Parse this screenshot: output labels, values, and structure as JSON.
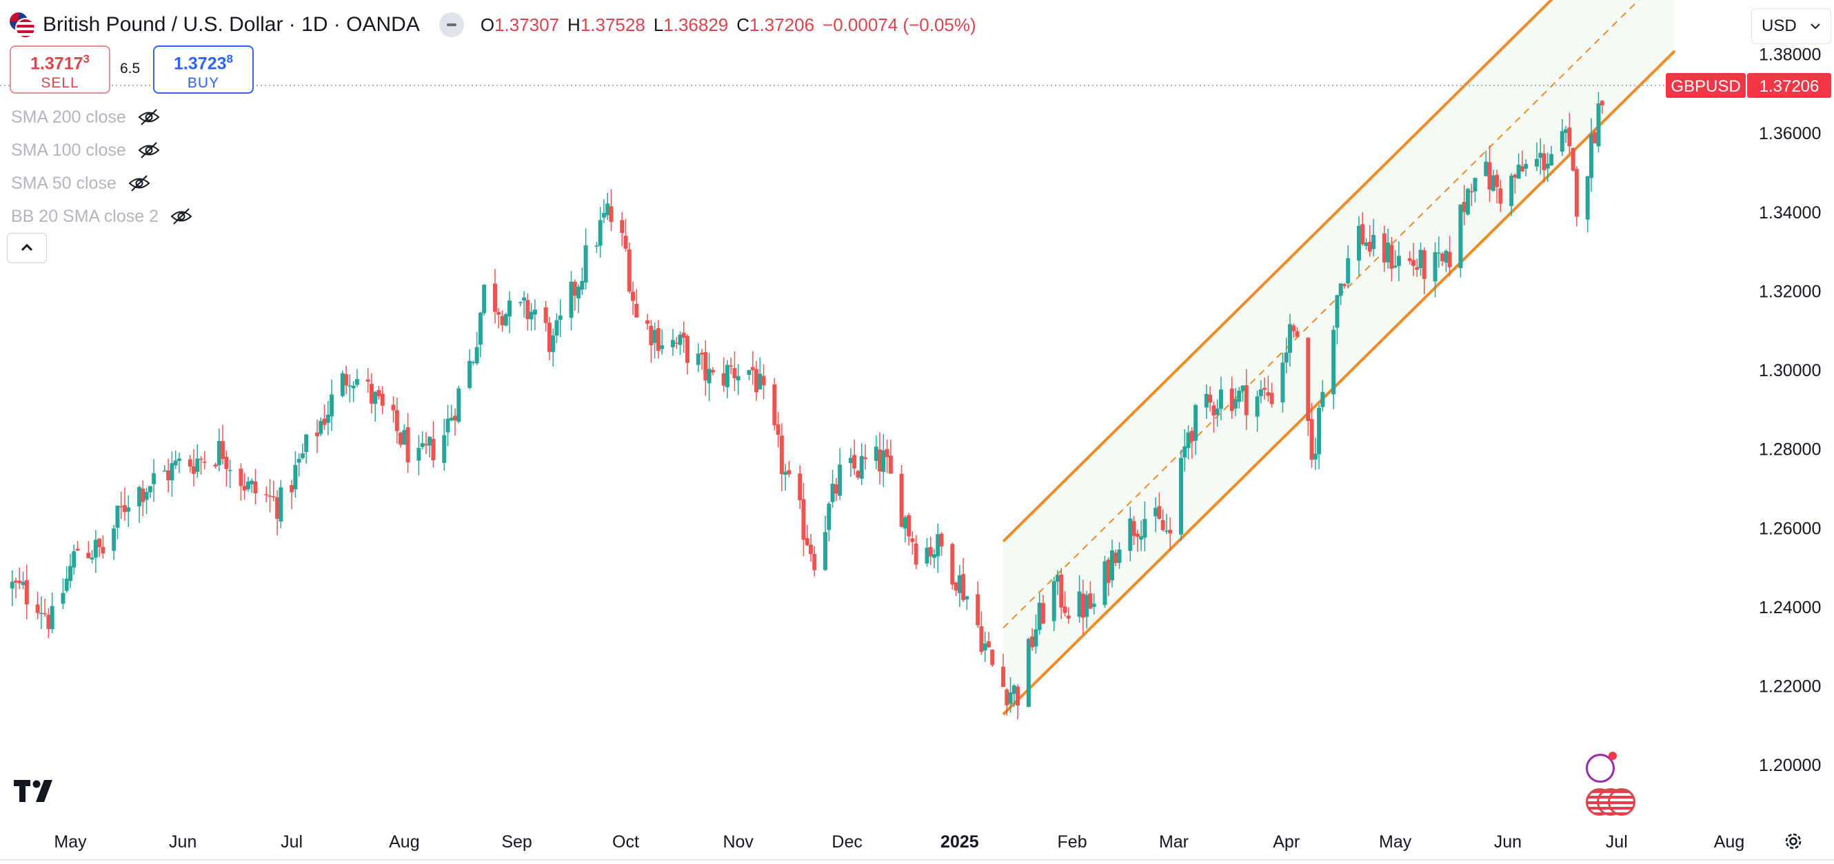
{
  "header": {
    "title": "British Pound / U.S. Dollar · 1D · OANDA",
    "ohlc": [
      {
        "k": "O",
        "v": "1.37307"
      },
      {
        "k": "H",
        "v": "1.37528"
      },
      {
        "k": "L",
        "v": "1.36829"
      },
      {
        "k": "C",
        "v": "1.37206"
      }
    ],
    "change": "−0.00074 (−0.05%)"
  },
  "trade": {
    "sell_price": "1.3717",
    "sell_sup": "3",
    "sell_label": "SELL",
    "spread": "6.5",
    "buy_price": "1.3723",
    "buy_sup": "8",
    "buy_label": "BUY"
  },
  "indicators": [
    "SMA 200 close",
    "SMA 100 close",
    "SMA 50 close",
    "BB 20 SMA close 2"
  ],
  "currency": "USD",
  "colors": {
    "up": "#26a69a",
    "down": "#ef5350",
    "channel": "#f08a24",
    "price_tag": "#f23645"
  },
  "chart_data": {
    "type": "candlestick",
    "symbol": "GBPUSD",
    "last_price": "1.37206",
    "y_ticks": [
      "1.38000",
      "1.36000",
      "1.34000",
      "1.32000",
      "1.30000",
      "1.28000",
      "1.26000",
      "1.24000",
      "1.22000",
      "1.20000"
    ],
    "ylim": [
      1.1948,
      1.3937
    ],
    "x_ticks": [
      {
        "label": "May",
        "date": "2024-05-01"
      },
      {
        "label": "Jun",
        "date": "2024-06-01"
      },
      {
        "label": "Jul",
        "date": "2024-07-01"
      },
      {
        "label": "Aug",
        "date": "2024-08-01"
      },
      {
        "label": "Sep",
        "date": "2024-09-01"
      },
      {
        "label": "Oct",
        "date": "2024-10-01"
      },
      {
        "label": "Nov",
        "date": "2024-11-01"
      },
      {
        "label": "Dec",
        "date": "2024-12-01"
      },
      {
        "label": "2025",
        "date": "2025-01-01",
        "bold": true
      },
      {
        "label": "Feb",
        "date": "2025-02-01"
      },
      {
        "label": "Mar",
        "date": "2025-03-01"
      },
      {
        "label": "Apr",
        "date": "2025-04-01"
      },
      {
        "label": "May",
        "date": "2025-05-01"
      },
      {
        "label": "Jun",
        "date": "2025-06-01"
      },
      {
        "label": "Jul",
        "date": "2025-07-01"
      },
      {
        "label": "Aug",
        "date": "2025-08-01"
      }
    ],
    "close_path": [
      [
        "2024-04-15",
        1.245
      ],
      [
        "2024-04-22",
        1.242
      ],
      [
        "2024-04-26",
        1.236
      ],
      [
        "2024-05-03",
        1.255
      ],
      [
        "2024-05-10",
        1.254
      ],
      [
        "2024-05-17",
        1.268
      ],
      [
        "2024-05-24",
        1.272
      ],
      [
        "2024-05-31",
        1.276
      ],
      [
        "2024-06-07",
        1.278
      ],
      [
        "2024-06-12",
        1.28
      ],
      [
        "2024-06-19",
        1.27
      ],
      [
        "2024-06-28",
        1.266
      ],
      [
        "2024-07-05",
        1.28
      ],
      [
        "2024-07-12",
        1.292
      ],
      [
        "2024-07-17",
        1.3
      ],
      [
        "2024-07-24",
        1.292
      ],
      [
        "2024-07-31",
        1.283
      ],
      [
        "2024-08-05",
        1.276
      ],
      [
        "2024-08-12",
        1.284
      ],
      [
        "2024-08-20",
        1.304
      ],
      [
        "2024-08-23",
        1.32
      ],
      [
        "2024-08-30",
        1.314
      ],
      [
        "2024-09-06",
        1.315
      ],
      [
        "2024-09-11",
        1.306
      ],
      [
        "2024-09-20",
        1.328
      ],
      [
        "2024-09-26",
        1.34
      ],
      [
        "2024-10-01",
        1.33
      ],
      [
        "2024-10-04",
        1.313
      ],
      [
        "2024-10-11",
        1.308
      ],
      [
        "2024-10-18",
        1.305
      ],
      [
        "2024-10-25",
        1.297
      ],
      [
        "2024-10-30",
        1.3
      ],
      [
        "2024-11-05",
        1.3
      ],
      [
        "2024-11-08",
        1.292
      ],
      [
        "2024-11-15",
        1.27
      ],
      [
        "2024-11-22",
        1.253
      ],
      [
        "2024-11-29",
        1.273
      ],
      [
        "2024-12-06",
        1.276
      ],
      [
        "2024-12-11",
        1.277
      ],
      [
        "2024-12-20",
        1.255
      ],
      [
        "2024-12-27",
        1.255
      ],
      [
        "2025-01-03",
        1.243
      ],
      [
        "2025-01-10",
        1.225
      ],
      [
        "2025-01-13",
        1.22
      ],
      [
        "2025-01-17",
        1.218
      ],
      [
        "2025-01-22",
        1.235
      ],
      [
        "2025-01-27",
        1.245
      ],
      [
        "2025-01-31",
        1.24
      ],
      [
        "2025-02-07",
        1.24
      ],
      [
        "2025-02-14",
        1.258
      ],
      [
        "2025-02-21",
        1.263
      ],
      [
        "2025-02-28",
        1.258
      ],
      [
        "2025-03-05",
        1.285
      ],
      [
        "2025-03-14",
        1.294
      ],
      [
        "2025-03-21",
        1.293
      ],
      [
        "2025-03-28",
        1.294
      ],
      [
        "2025-04-03",
        1.312
      ],
      [
        "2025-04-08",
        1.276
      ],
      [
        "2025-04-15",
        1.32
      ],
      [
        "2025-04-21",
        1.335
      ],
      [
        "2025-04-25",
        1.33
      ],
      [
        "2025-05-02",
        1.328
      ],
      [
        "2025-05-09",
        1.326
      ],
      [
        "2025-05-15",
        1.326
      ],
      [
        "2025-05-23",
        1.352
      ],
      [
        "2025-05-30",
        1.345
      ],
      [
        "2025-06-06",
        1.351
      ],
      [
        "2025-06-12",
        1.354
      ],
      [
        "2025-06-17",
        1.358
      ],
      [
        "2025-06-20",
        1.343
      ],
      [
        "2025-06-23",
        1.352
      ],
      [
        "2025-06-27",
        1.371
      ],
      [
        "2025-06-30",
        1.372
      ]
    ],
    "channel": {
      "lower": [
        [
          "2025-01-13",
          1.2128
        ],
        [
          "2025-07-17",
          1.3808
        ]
      ],
      "upper": [
        [
          "2025-01-13",
          1.2566
        ],
        [
          "2025-07-17",
          1.4246
        ]
      ]
    }
  }
}
